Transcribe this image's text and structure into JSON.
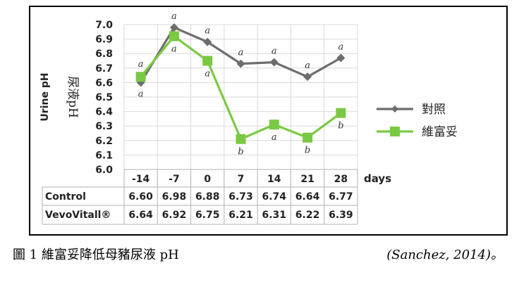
{
  "chart_data": {
    "type": "line",
    "x": [
      "-14",
      "-7",
      "0",
      "7",
      "14",
      "21",
      "28"
    ],
    "xlabel": "days",
    "ylabel_en": "Urine pH",
    "ylabel_zh": "尿液pH",
    "ylim": [
      6.0,
      7.0
    ],
    "yticks": [
      "6.0",
      "6.1",
      "6.2",
      "6.3",
      "6.4",
      "6.5",
      "6.6",
      "6.7",
      "6.8",
      "6.9",
      "7.0"
    ],
    "grid": true,
    "legend_position": "right",
    "series": [
      {
        "name": "對照",
        "table_name": "Control",
        "color": "#6d6d6d",
        "marker": "diamond",
        "values": [
          6.6,
          6.98,
          6.88,
          6.73,
          6.74,
          6.64,
          6.77
        ],
        "table_values": [
          "6.60",
          "6.98",
          "6.88",
          "6.73",
          "6.74",
          "6.64",
          "6.77"
        ],
        "letters": [
          "a",
          "a",
          "a",
          "a",
          "a",
          "a",
          "a"
        ]
      },
      {
        "name": "維富妥",
        "table_name": "VevoVitall®",
        "color": "#7ac943",
        "marker": "square",
        "values": [
          6.64,
          6.92,
          6.75,
          6.21,
          6.31,
          6.22,
          6.39
        ],
        "table_values": [
          "6.64",
          "6.92",
          "6.75",
          "6.21",
          "6.31",
          "6.22",
          "6.39"
        ],
        "letters": [
          "a",
          "a",
          "a",
          "b",
          "a",
          "b",
          "b"
        ]
      }
    ]
  },
  "caption": {
    "left": "圖 1  維富妥降低母豬尿液 pH",
    "right": "(Sanchez, 2014)。"
  }
}
